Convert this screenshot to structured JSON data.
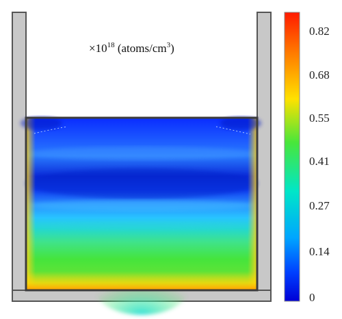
{
  "figure": {
    "unit_label": {
      "prefix": "×10",
      "exponent": "18",
      "quantity": " (atoms/cm",
      "unit_exponent": "3",
      "suffix": ")"
    }
  },
  "colorbar": {
    "ticks": [
      "0.82",
      "0.68",
      "0.55",
      "0.41",
      "0.27",
      "0.14",
      "0"
    ],
    "colors": [
      "#ff2000",
      "#ff8c00",
      "#ffe800",
      "#39e639",
      "#00e0d0",
      "#00a0ff",
      "#0030ff",
      "#0000d0"
    ]
  },
  "field": {
    "colors": {
      "crucible_wall": "#c8c8c8",
      "crucible_edge": "#555555",
      "melt_border": "#3c3c3c"
    }
  }
}
